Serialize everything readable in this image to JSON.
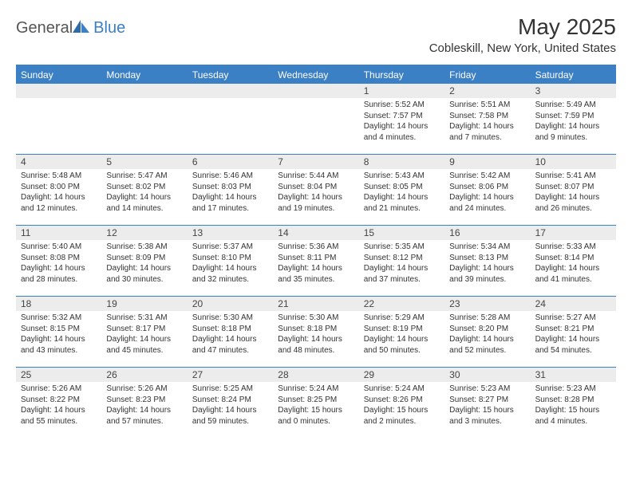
{
  "logo": {
    "text1": "General",
    "text2": "Blue"
  },
  "title": "May 2025",
  "location": "Cobleskill, New York, United States",
  "colors": {
    "accent": "#3b7fc4",
    "header_bg": "#ececec",
    "text": "#333333",
    "logo_gray": "#555555",
    "border": "#3b7fc4",
    "background": "#ffffff"
  },
  "days_of_week": [
    "Sunday",
    "Monday",
    "Tuesday",
    "Wednesday",
    "Thursday",
    "Friday",
    "Saturday"
  ],
  "weeks": [
    [
      {
        "n": "",
        "sr": "",
        "ss": "",
        "dl": ""
      },
      {
        "n": "",
        "sr": "",
        "ss": "",
        "dl": ""
      },
      {
        "n": "",
        "sr": "",
        "ss": "",
        "dl": ""
      },
      {
        "n": "",
        "sr": "",
        "ss": "",
        "dl": ""
      },
      {
        "n": "1",
        "sr": "Sunrise: 5:52 AM",
        "ss": "Sunset: 7:57 PM",
        "dl": "Daylight: 14 hours and 4 minutes."
      },
      {
        "n": "2",
        "sr": "Sunrise: 5:51 AM",
        "ss": "Sunset: 7:58 PM",
        "dl": "Daylight: 14 hours and 7 minutes."
      },
      {
        "n": "3",
        "sr": "Sunrise: 5:49 AM",
        "ss": "Sunset: 7:59 PM",
        "dl": "Daylight: 14 hours and 9 minutes."
      }
    ],
    [
      {
        "n": "4",
        "sr": "Sunrise: 5:48 AM",
        "ss": "Sunset: 8:00 PM",
        "dl": "Daylight: 14 hours and 12 minutes."
      },
      {
        "n": "5",
        "sr": "Sunrise: 5:47 AM",
        "ss": "Sunset: 8:02 PM",
        "dl": "Daylight: 14 hours and 14 minutes."
      },
      {
        "n": "6",
        "sr": "Sunrise: 5:46 AM",
        "ss": "Sunset: 8:03 PM",
        "dl": "Daylight: 14 hours and 17 minutes."
      },
      {
        "n": "7",
        "sr": "Sunrise: 5:44 AM",
        "ss": "Sunset: 8:04 PM",
        "dl": "Daylight: 14 hours and 19 minutes."
      },
      {
        "n": "8",
        "sr": "Sunrise: 5:43 AM",
        "ss": "Sunset: 8:05 PM",
        "dl": "Daylight: 14 hours and 21 minutes."
      },
      {
        "n": "9",
        "sr": "Sunrise: 5:42 AM",
        "ss": "Sunset: 8:06 PM",
        "dl": "Daylight: 14 hours and 24 minutes."
      },
      {
        "n": "10",
        "sr": "Sunrise: 5:41 AM",
        "ss": "Sunset: 8:07 PM",
        "dl": "Daylight: 14 hours and 26 minutes."
      }
    ],
    [
      {
        "n": "11",
        "sr": "Sunrise: 5:40 AM",
        "ss": "Sunset: 8:08 PM",
        "dl": "Daylight: 14 hours and 28 minutes."
      },
      {
        "n": "12",
        "sr": "Sunrise: 5:38 AM",
        "ss": "Sunset: 8:09 PM",
        "dl": "Daylight: 14 hours and 30 minutes."
      },
      {
        "n": "13",
        "sr": "Sunrise: 5:37 AM",
        "ss": "Sunset: 8:10 PM",
        "dl": "Daylight: 14 hours and 32 minutes."
      },
      {
        "n": "14",
        "sr": "Sunrise: 5:36 AM",
        "ss": "Sunset: 8:11 PM",
        "dl": "Daylight: 14 hours and 35 minutes."
      },
      {
        "n": "15",
        "sr": "Sunrise: 5:35 AM",
        "ss": "Sunset: 8:12 PM",
        "dl": "Daylight: 14 hours and 37 minutes."
      },
      {
        "n": "16",
        "sr": "Sunrise: 5:34 AM",
        "ss": "Sunset: 8:13 PM",
        "dl": "Daylight: 14 hours and 39 minutes."
      },
      {
        "n": "17",
        "sr": "Sunrise: 5:33 AM",
        "ss": "Sunset: 8:14 PM",
        "dl": "Daylight: 14 hours and 41 minutes."
      }
    ],
    [
      {
        "n": "18",
        "sr": "Sunrise: 5:32 AM",
        "ss": "Sunset: 8:15 PM",
        "dl": "Daylight: 14 hours and 43 minutes."
      },
      {
        "n": "19",
        "sr": "Sunrise: 5:31 AM",
        "ss": "Sunset: 8:17 PM",
        "dl": "Daylight: 14 hours and 45 minutes."
      },
      {
        "n": "20",
        "sr": "Sunrise: 5:30 AM",
        "ss": "Sunset: 8:18 PM",
        "dl": "Daylight: 14 hours and 47 minutes."
      },
      {
        "n": "21",
        "sr": "Sunrise: 5:30 AM",
        "ss": "Sunset: 8:18 PM",
        "dl": "Daylight: 14 hours and 48 minutes."
      },
      {
        "n": "22",
        "sr": "Sunrise: 5:29 AM",
        "ss": "Sunset: 8:19 PM",
        "dl": "Daylight: 14 hours and 50 minutes."
      },
      {
        "n": "23",
        "sr": "Sunrise: 5:28 AM",
        "ss": "Sunset: 8:20 PM",
        "dl": "Daylight: 14 hours and 52 minutes."
      },
      {
        "n": "24",
        "sr": "Sunrise: 5:27 AM",
        "ss": "Sunset: 8:21 PM",
        "dl": "Daylight: 14 hours and 54 minutes."
      }
    ],
    [
      {
        "n": "25",
        "sr": "Sunrise: 5:26 AM",
        "ss": "Sunset: 8:22 PM",
        "dl": "Daylight: 14 hours and 55 minutes."
      },
      {
        "n": "26",
        "sr": "Sunrise: 5:26 AM",
        "ss": "Sunset: 8:23 PM",
        "dl": "Daylight: 14 hours and 57 minutes."
      },
      {
        "n": "27",
        "sr": "Sunrise: 5:25 AM",
        "ss": "Sunset: 8:24 PM",
        "dl": "Daylight: 14 hours and 59 minutes."
      },
      {
        "n": "28",
        "sr": "Sunrise: 5:24 AM",
        "ss": "Sunset: 8:25 PM",
        "dl": "Daylight: 15 hours and 0 minutes."
      },
      {
        "n": "29",
        "sr": "Sunrise: 5:24 AM",
        "ss": "Sunset: 8:26 PM",
        "dl": "Daylight: 15 hours and 2 minutes."
      },
      {
        "n": "30",
        "sr": "Sunrise: 5:23 AM",
        "ss": "Sunset: 8:27 PM",
        "dl": "Daylight: 15 hours and 3 minutes."
      },
      {
        "n": "31",
        "sr": "Sunrise: 5:23 AM",
        "ss": "Sunset: 8:28 PM",
        "dl": "Daylight: 15 hours and 4 minutes."
      }
    ]
  ]
}
